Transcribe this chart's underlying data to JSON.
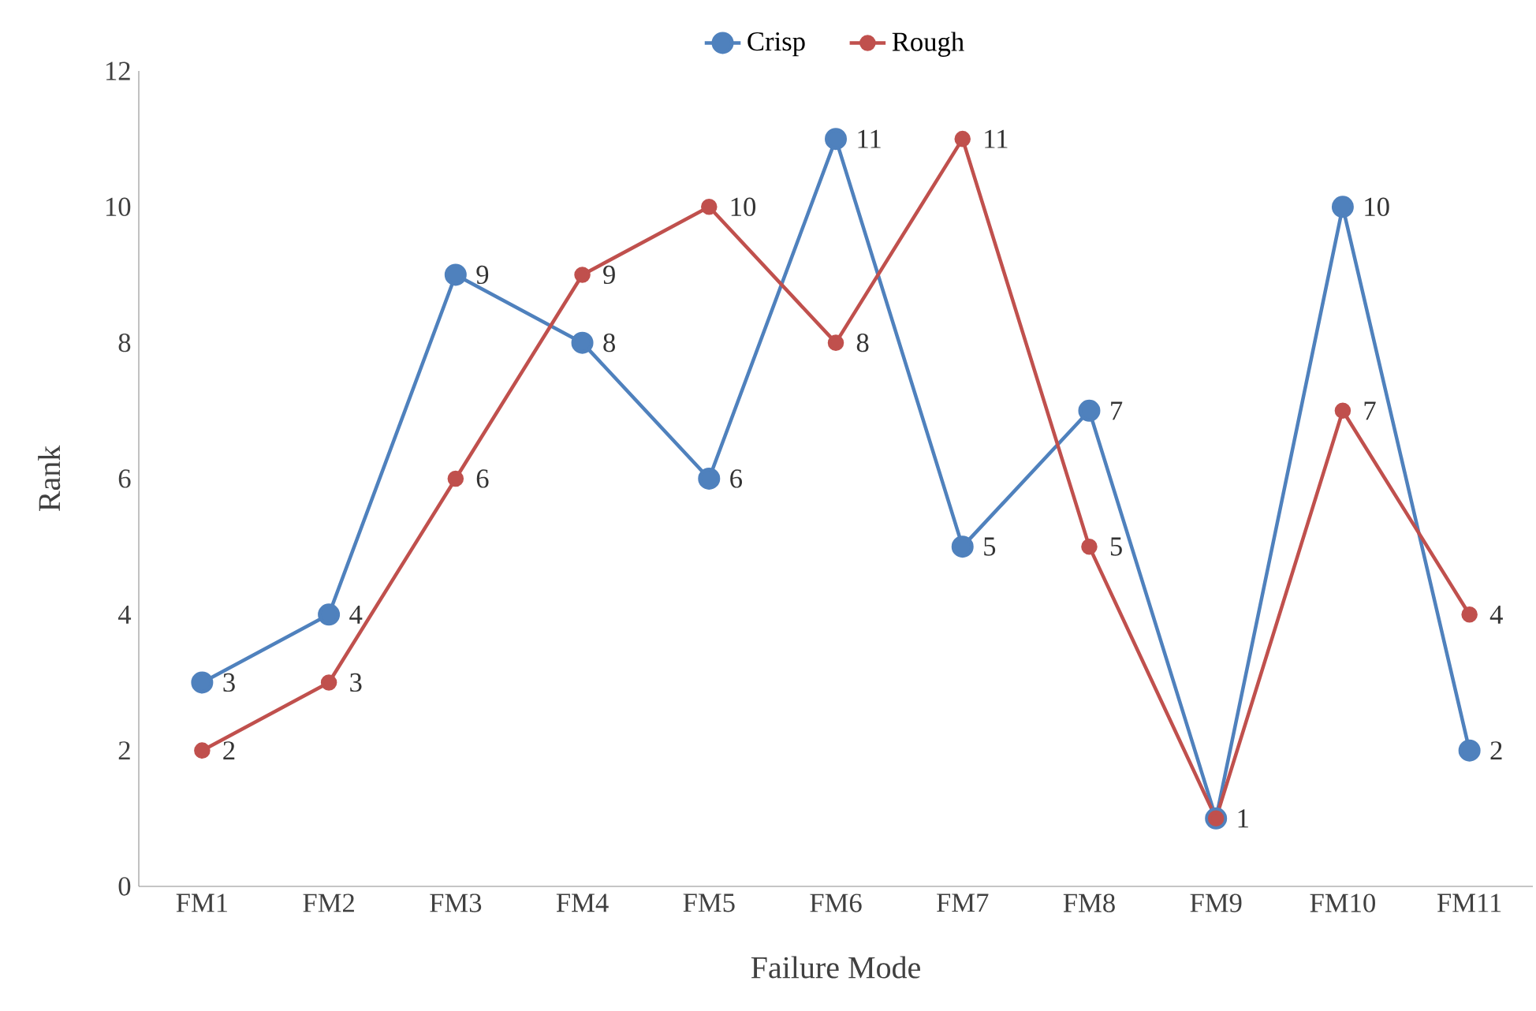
{
  "chart_data": {
    "type": "line",
    "xlabel": "Failure Mode",
    "ylabel": "Rank",
    "categories": [
      "FM1",
      "FM2",
      "FM3",
      "FM4",
      "FM5",
      "FM6",
      "FM7",
      "FM8",
      "FM9",
      "FM10",
      "FM11"
    ],
    "series": [
      {
        "name": "Crisp",
        "color": "#4f81bd",
        "values": [
          3,
          4,
          9,
          8,
          6,
          11,
          5,
          7,
          1,
          10,
          2
        ],
        "value_labels": [
          "3",
          "4",
          "9",
          "8",
          "6",
          "11",
          "5",
          "7",
          null,
          "10",
          "2"
        ]
      },
      {
        "name": "Rough",
        "color": "#c0504d",
        "values": [
          2,
          3,
          6,
          9,
          10,
          8,
          11,
          5,
          1,
          7,
          4
        ],
        "value_labels": [
          "2",
          "3",
          "6",
          "9",
          "10",
          "8",
          "11",
          "5",
          "1",
          "7",
          "4"
        ]
      }
    ],
    "ylim": [
      0,
      12
    ],
    "yticks": [
      0,
      2,
      4,
      6,
      8,
      10,
      12
    ],
    "grid": false,
    "legend": "top",
    "marker": "circle",
    "line_style": "solid"
  }
}
